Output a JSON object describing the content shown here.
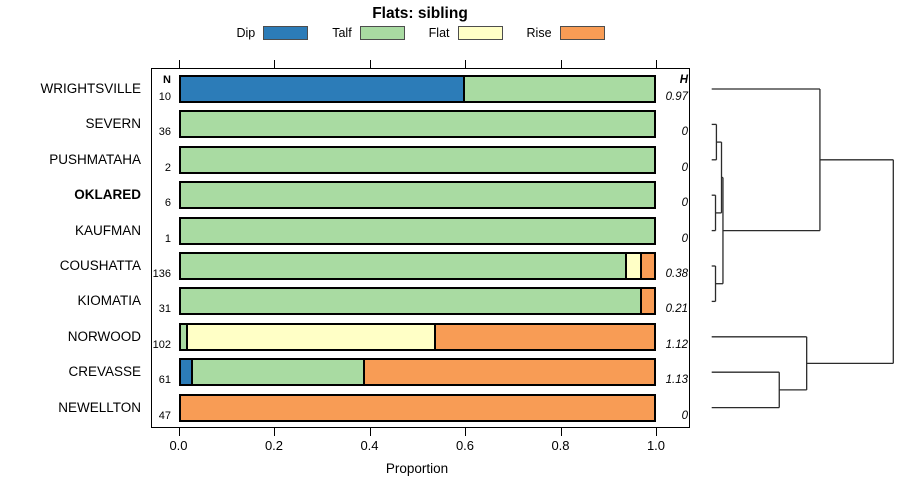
{
  "title": "Flats: sibling",
  "legend": [
    {
      "label": "Dip",
      "color": "#2C7CB8"
    },
    {
      "label": "Talf",
      "color": "#A9DBA2"
    },
    {
      "label": "Flat",
      "color": "#FFFFC6"
    },
    {
      "label": "Rise",
      "color": "#F89C55"
    }
  ],
  "chart_data": {
    "type": "bar",
    "orientation": "horizontal",
    "stacked": true,
    "title": "Flats: sibling",
    "xlabel": "Proportion",
    "xlim": [
      0,
      1
    ],
    "x_ticks": [
      0.0,
      0.2,
      0.4,
      0.6,
      0.8,
      1.0
    ],
    "x_tick_labels": [
      "0.0",
      "0.2",
      "0.4",
      "0.6",
      "0.8",
      "1.0"
    ],
    "n_header": "N",
    "h_header": "H",
    "categories": [
      "WRIGHTSVILLE",
      "SEVERN",
      "PUSHMATAHA",
      "OKLARED",
      "KAUFMAN",
      "COUSHATTA",
      "KIOMATIA",
      "NORWOOD",
      "CREVASSE",
      "NEWELLTON"
    ],
    "bold_categories": [
      "OKLARED"
    ],
    "n_values": [
      10,
      36,
      2,
      6,
      1,
      136,
      31,
      102,
      61,
      47
    ],
    "h_values": [
      "0.97",
      "0",
      "0",
      "0",
      "0",
      "0.38",
      "0.21",
      "1.12",
      "1.13",
      "0"
    ],
    "series": [
      {
        "name": "Dip",
        "values": [
          0.6,
          0,
          0,
          0,
          0,
          0,
          0,
          0,
          0.03,
          0
        ]
      },
      {
        "name": "Talf",
        "values": [
          0.4,
          1,
          1,
          1,
          1,
          0.94,
          0.97,
          0.02,
          0.36,
          0
        ]
      },
      {
        "name": "Flat",
        "values": [
          0,
          0,
          0,
          0,
          0,
          0.03,
          0,
          0.52,
          0,
          0
        ]
      },
      {
        "name": "Rise",
        "values": [
          0,
          0,
          0,
          0,
          0,
          0.03,
          0.03,
          0.46,
          0.61,
          1
        ]
      }
    ]
  },
  "dendrogram": {
    "description": "hierarchical clustering of sites; merge heights normalized 0 (leaf) to 1 (root)",
    "merges": [
      {
        "a": "SEVERN",
        "b": "PUSHMATAHA",
        "h": 0.026
      },
      {
        "a": "OKLARED",
        "b": "KAUFMAN",
        "h": 0.021
      },
      {
        "a": "#0",
        "b": "#1",
        "h": 0.054
      },
      {
        "a": "COUSHATTA",
        "b": "KIOMATIA",
        "h": 0.021
      },
      {
        "a": "#2",
        "b": "#3",
        "h": 0.062
      },
      {
        "a": "WRIGHTSVILLE",
        "b": "#4",
        "h": 0.596
      },
      {
        "a": "CREVASSE",
        "b": "NEWELLTON",
        "h": 0.372
      },
      {
        "a": "NORWOOD",
        "b": "#6",
        "h": 0.523
      },
      {
        "a": "#5",
        "b": "#7",
        "h": 1.0
      }
    ]
  }
}
